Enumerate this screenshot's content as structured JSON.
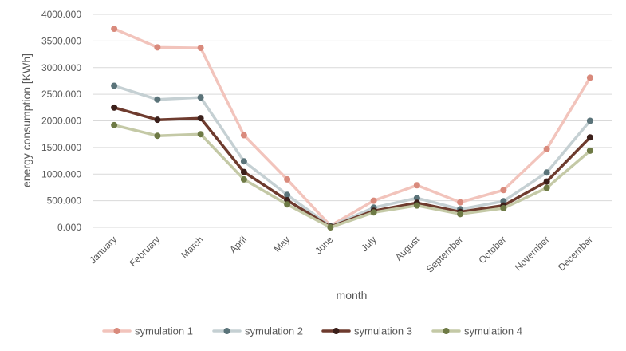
{
  "chart_data": {
    "type": "line",
    "title": "",
    "xlabel": "month",
    "ylabel": "energy consumption [KWh]",
    "ylim": [
      0,
      4000
    ],
    "ytick_values": [
      0,
      500,
      1000,
      1500,
      2000,
      2500,
      3000,
      3500,
      4000
    ],
    "ytick_labels": [
      "0.000",
      "500.000",
      "1000.000",
      "1500.000",
      "2000.000",
      "2500.000",
      "3000.000",
      "3500.000",
      "4000.000"
    ],
    "grid": true,
    "legend_position": "bottom",
    "categories": [
      "January",
      "February",
      "March",
      "April",
      "May",
      "June",
      "July",
      "August",
      "September",
      "October",
      "November",
      "December"
    ],
    "series": [
      {
        "name": "symulation 1",
        "line_color": "#f2c4bc",
        "marker_color": "#d98a7c",
        "values": [
          3730,
          3380,
          3370,
          1730,
          900,
          30,
          500,
          790,
          470,
          700,
          1470,
          2810
        ]
      },
      {
        "name": "symulation 2",
        "line_color": "#c5d0d3",
        "marker_color": "#5a7379",
        "values": [
          2660,
          2400,
          2440,
          1240,
          610,
          20,
          370,
          550,
          340,
          490,
          1030,
          2000
        ]
      },
      {
        "name": "symulation 3",
        "line_color": "#6e3b2e",
        "marker_color": "#3b1f1a",
        "values": [
          2250,
          2020,
          2050,
          1040,
          510,
          10,
          310,
          460,
          290,
          410,
          860,
          1690
        ]
      },
      {
        "name": "symulation 4",
        "line_color": "#c4c9a6",
        "marker_color": "#6e7a45",
        "values": [
          1920,
          1720,
          1750,
          900,
          430,
          0,
          280,
          410,
          250,
          360,
          740,
          1440
        ]
      }
    ]
  }
}
